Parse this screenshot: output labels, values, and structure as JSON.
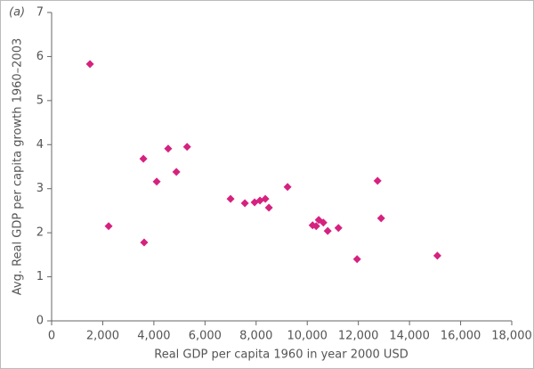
{
  "chart_data": {
    "type": "scatter",
    "annotation": "(a)",
    "x_label": "Real GDP per capita 1960 in year 2000 USD",
    "y_label": "Avg. Real GDP per capita growth 1960–2003",
    "series": [
      {
        "color": "#d6217f",
        "x": [
          1500,
          2230,
          3590,
          3620,
          4110,
          4560,
          4880,
          5300,
          7000,
          7560,
          7940,
          8150,
          8360,
          8500,
          9230,
          10210,
          10350,
          10450,
          10630,
          10800,
          11220,
          11950,
          12750,
          12890,
          15090
        ],
        "values": [
          5.83,
          2.15,
          3.68,
          1.78,
          3.16,
          3.91,
          3.38,
          3.95,
          2.77,
          2.67,
          2.69,
          2.73,
          2.77,
          2.57,
          3.04,
          2.17,
          2.15,
          2.29,
          2.23,
          2.04,
          2.11,
          1.4,
          3.18,
          2.33,
          1.48
        ]
      }
    ],
    "xlim": [
      0,
      18000
    ],
    "xticks": [
      0,
      {
        "value": 2000,
        "label": "2,000"
      },
      {
        "value": 4000,
        "label": "4,000"
      },
      {
        "value": 6000,
        "label": "6,000"
      },
      {
        "value": 8000,
        "label": "8,000"
      },
      {
        "value": 10000,
        "label": "10,000"
      },
      {
        "value": 12000,
        "label": "12,000"
      },
      {
        "value": 14000,
        "label": "14,000"
      },
      {
        "value": 16000,
        "label": "16,000"
      },
      {
        "value": 18000,
        "label": "18,000"
      }
    ],
    "ylim": [
      0,
      7
    ],
    "yticks": [
      0,
      1,
      2,
      3,
      4,
      5,
      6,
      7
    ]
  }
}
